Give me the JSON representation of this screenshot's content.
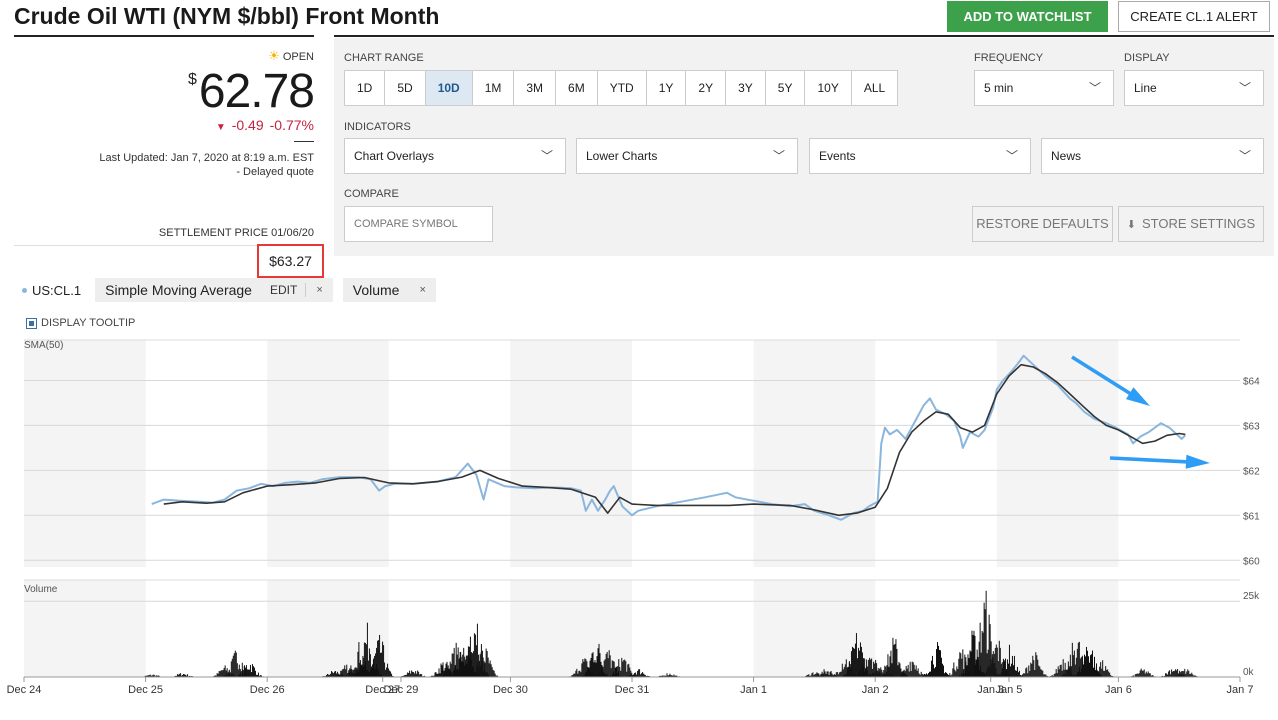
{
  "title": "Crude Oil WTI (NYM $/bbl) Front Month",
  "buttons": {
    "watchlist": "ADD TO WATCHLIST",
    "alert": "CREATE CL.1 ALERT"
  },
  "quote": {
    "status": "OPEN",
    "currency": "$",
    "price": "62.78",
    "change": "-0.49",
    "change_pct": "-0.77%",
    "updated": "Last Updated: Jan 7, 2020 at 8:19 a.m. EST",
    "delayed": "-  Delayed quote",
    "settlement_label": "SETTLEMENT PRICE 01/06/20",
    "settlement_price": "$63.27",
    "colors": {
      "down": "#c7223f",
      "highlight_box": "#e53935"
    }
  },
  "controls": {
    "chart_range_label": "CHART RANGE",
    "ranges": [
      "1D",
      "5D",
      "10D",
      "1M",
      "3M",
      "6M",
      "YTD",
      "1Y",
      "2Y",
      "3Y",
      "5Y",
      "10Y",
      "ALL"
    ],
    "active_range": "10D",
    "frequency_label": "FREQUENCY",
    "frequency_value": "5 min",
    "display_label": "DISPLAY",
    "display_value": "Line",
    "indicators_label": "INDICATORS",
    "indicator_dropdowns": [
      "Chart Overlays",
      "Lower Charts",
      "Events",
      "News"
    ],
    "compare_label": "COMPARE",
    "compare_placeholder": "COMPARE SYMBOL",
    "restore_defaults": "RESTORE DEFAULTS",
    "store_settings": "STORE SETTINGS"
  },
  "legend": {
    "symbol": "US:CL.1",
    "sma_label": "Simple Moving Average",
    "edit": "EDIT",
    "close": "×",
    "volume_label": "Volume",
    "display_tooltip": "DISPLAY TOOLTIP"
  },
  "chart_data": {
    "type": "line",
    "panel_label": "SMA(50)",
    "volume_label": "Volume",
    "x_labels": [
      "Dec 24",
      "Dec 25",
      "Dec 26",
      "Dec 27",
      "Dec 29",
      "Dec 30",
      "Dec 31",
      "Jan 1",
      "Jan 2",
      "Jan 3",
      "Jan 5",
      "Jan 6",
      "Jan 7"
    ],
    "y_ticks": [
      "$64",
      "$63",
      "$62",
      "$61",
      "$60"
    ],
    "y_tick_values": [
      64,
      63,
      62,
      61,
      60
    ],
    "ylim": [
      59.85,
      64.9
    ],
    "volume_ticks": [
      "25k",
      "0k"
    ],
    "volume_tick_values": [
      25000,
      0
    ],
    "volume_ylim": [
      0,
      32000
    ],
    "xlim": [
      0,
      10
    ],
    "series": [
      {
        "name": "US:CL.1",
        "color": "#8ab6dd",
        "points": [
          [
            1.05,
            61.25
          ],
          [
            1.15,
            61.35
          ],
          [
            1.3,
            61.32
          ],
          [
            1.45,
            61.3
          ],
          [
            1.55,
            61.28
          ],
          [
            1.65,
            61.35
          ],
          [
            1.75,
            61.55
          ],
          [
            1.85,
            61.6
          ],
          [
            1.95,
            61.7
          ],
          [
            2.05,
            61.65
          ],
          [
            2.15,
            61.72
          ],
          [
            2.25,
            61.75
          ],
          [
            2.35,
            61.72
          ],
          [
            2.45,
            61.8
          ],
          [
            2.6,
            61.85
          ],
          [
            2.75,
            61.85
          ],
          [
            2.85,
            61.8
          ],
          [
            2.92,
            61.55
          ],
          [
            2.97,
            61.65
          ],
          [
            3.05,
            61.7
          ],
          [
            3.2,
            61.7
          ],
          [
            3.4,
            61.75
          ],
          [
            3.55,
            61.85
          ],
          [
            3.65,
            62.15
          ],
          [
            3.72,
            61.9
          ],
          [
            3.78,
            61.35
          ],
          [
            3.82,
            61.8
          ],
          [
            3.95,
            61.65
          ],
          [
            4.05,
            61.62
          ],
          [
            4.2,
            61.6
          ],
          [
            4.35,
            61.62
          ],
          [
            4.5,
            61.6
          ],
          [
            4.58,
            61.55
          ],
          [
            4.62,
            61.1
          ],
          [
            4.67,
            61.35
          ],
          [
            4.72,
            61.1
          ],
          [
            4.78,
            61.35
          ],
          [
            4.82,
            61.55
          ],
          [
            4.85,
            61.65
          ],
          [
            4.92,
            61.2
          ],
          [
            5.0,
            61.0
          ],
          [
            5.05,
            61.1
          ],
          [
            5.2,
            61.2
          ],
          [
            5.4,
            61.3
          ],
          [
            5.6,
            61.4
          ],
          [
            5.78,
            61.5
          ],
          [
            5.85,
            61.4
          ],
          [
            5.95,
            61.35
          ],
          [
            6.05,
            61.3
          ],
          [
            6.15,
            61.25
          ],
          [
            6.3,
            61.2
          ],
          [
            6.42,
            61.25
          ],
          [
            6.5,
            61.1
          ],
          [
            6.62,
            61.0
          ],
          [
            6.72,
            60.9
          ],
          [
            6.82,
            61.05
          ],
          [
            6.9,
            61.1
          ],
          [
            6.95,
            61.2
          ],
          [
            7.02,
            61.3
          ],
          [
            7.05,
            62.6
          ],
          [
            7.08,
            62.95
          ],
          [
            7.12,
            62.8
          ],
          [
            7.18,
            62.9
          ],
          [
            7.25,
            62.7
          ],
          [
            7.33,
            63.1
          ],
          [
            7.4,
            63.45
          ],
          [
            7.45,
            63.6
          ],
          [
            7.5,
            63.35
          ],
          [
            7.58,
            63.25
          ],
          [
            7.65,
            63.1
          ],
          [
            7.7,
            62.75
          ],
          [
            7.72,
            62.5
          ],
          [
            7.78,
            62.85
          ],
          [
            7.85,
            62.75
          ],
          [
            7.9,
            62.9
          ],
          [
            7.97,
            63.4
          ],
          [
            8.0,
            63.8
          ],
          [
            8.05,
            64.0
          ],
          [
            8.12,
            64.2
          ],
          [
            8.18,
            64.4
          ],
          [
            8.22,
            64.55
          ],
          [
            8.3,
            64.35
          ],
          [
            8.4,
            64.1
          ],
          [
            8.5,
            63.9
          ],
          [
            8.6,
            63.6
          ],
          [
            8.65,
            63.5
          ],
          [
            8.72,
            63.3
          ],
          [
            8.8,
            63.15
          ],
          [
            8.9,
            63.05
          ],
          [
            8.98,
            62.95
          ],
          [
            9.08,
            62.8
          ],
          [
            9.12,
            62.6
          ],
          [
            9.18,
            62.75
          ],
          [
            9.25,
            62.85
          ],
          [
            9.35,
            63.05
          ],
          [
            9.42,
            62.95
          ],
          [
            9.48,
            62.8
          ],
          [
            9.52,
            62.7
          ],
          [
            9.55,
            62.78
          ]
        ]
      },
      {
        "name": "Simple Moving Average",
        "color": "#333333",
        "points": [
          [
            1.15,
            61.25
          ],
          [
            1.3,
            61.3
          ],
          [
            1.5,
            61.27
          ],
          [
            1.65,
            61.3
          ],
          [
            1.8,
            61.5
          ],
          [
            2.0,
            61.65
          ],
          [
            2.2,
            61.68
          ],
          [
            2.4,
            61.72
          ],
          [
            2.6,
            61.82
          ],
          [
            2.8,
            61.84
          ],
          [
            3.0,
            61.72
          ],
          [
            3.2,
            61.7
          ],
          [
            3.4,
            61.75
          ],
          [
            3.6,
            61.85
          ],
          [
            3.75,
            62.0
          ],
          [
            3.9,
            61.82
          ],
          [
            4.1,
            61.65
          ],
          [
            4.3,
            61.62
          ],
          [
            4.5,
            61.58
          ],
          [
            4.7,
            61.4
          ],
          [
            4.8,
            61.05
          ],
          [
            4.9,
            61.4
          ],
          [
            5.0,
            61.25
          ],
          [
            5.2,
            61.22
          ],
          [
            5.5,
            61.22
          ],
          [
            5.8,
            61.22
          ],
          [
            6.0,
            61.25
          ],
          [
            6.3,
            61.22
          ],
          [
            6.5,
            61.12
          ],
          [
            6.7,
            61.0
          ],
          [
            6.85,
            61.05
          ],
          [
            7.0,
            61.18
          ],
          [
            7.1,
            61.6
          ],
          [
            7.2,
            62.4
          ],
          [
            7.3,
            62.85
          ],
          [
            7.4,
            63.1
          ],
          [
            7.5,
            63.3
          ],
          [
            7.6,
            63.25
          ],
          [
            7.7,
            62.95
          ],
          [
            7.8,
            62.85
          ],
          [
            7.9,
            63.0
          ],
          [
            8.0,
            63.7
          ],
          [
            8.1,
            64.1
          ],
          [
            8.2,
            64.35
          ],
          [
            8.3,
            64.3
          ],
          [
            8.4,
            64.15
          ],
          [
            8.5,
            63.95
          ],
          [
            8.6,
            63.7
          ],
          [
            8.7,
            63.45
          ],
          [
            8.8,
            63.2
          ],
          [
            8.9,
            63.0
          ],
          [
            9.0,
            62.9
          ],
          [
            9.1,
            62.75
          ],
          [
            9.2,
            62.6
          ],
          [
            9.3,
            62.65
          ],
          [
            9.4,
            62.78
          ],
          [
            9.5,
            62.82
          ],
          [
            9.55,
            62.8
          ]
        ]
      }
    ],
    "volume_bursts": [
      [
        1.05,
        1000
      ],
      [
        1.3,
        1500
      ],
      [
        1.65,
        4000
      ],
      [
        1.75,
        10000
      ],
      [
        1.85,
        6000
      ],
      [
        2.55,
        2500
      ],
      [
        2.65,
        5000
      ],
      [
        2.75,
        12000
      ],
      [
        2.82,
        18000
      ],
      [
        2.92,
        14000
      ],
      [
        3.2,
        3000
      ],
      [
        3.45,
        6000
      ],
      [
        3.55,
        12000
      ],
      [
        3.62,
        16000
      ],
      [
        3.7,
        28000
      ],
      [
        3.78,
        11000
      ],
      [
        4.6,
        7000
      ],
      [
        4.7,
        14000
      ],
      [
        4.8,
        10000
      ],
      [
        4.92,
        8000
      ],
      [
        5.05,
        3000
      ],
      [
        5.3,
        1500
      ],
      [
        6.5,
        2000
      ],
      [
        6.6,
        3000
      ],
      [
        6.75,
        8000
      ],
      [
        6.85,
        16000
      ],
      [
        6.95,
        12000
      ],
      [
        7.05,
        6000
      ],
      [
        7.15,
        14000
      ],
      [
        7.3,
        8000
      ],
      [
        7.5,
        12000
      ],
      [
        7.7,
        11000
      ],
      [
        7.8,
        16000
      ],
      [
        7.9,
        30000
      ],
      [
        8.0,
        14000
      ],
      [
        8.1,
        11000
      ],
      [
        8.3,
        9000
      ],
      [
        8.55,
        8000
      ],
      [
        8.65,
        15000
      ],
      [
        8.75,
        14000
      ],
      [
        8.85,
        6000
      ],
      [
        9.2,
        3000
      ],
      [
        9.45,
        4000
      ],
      [
        9.55,
        3000
      ]
    ]
  },
  "annotations": {
    "arrow_color": "#2f9df5"
  }
}
